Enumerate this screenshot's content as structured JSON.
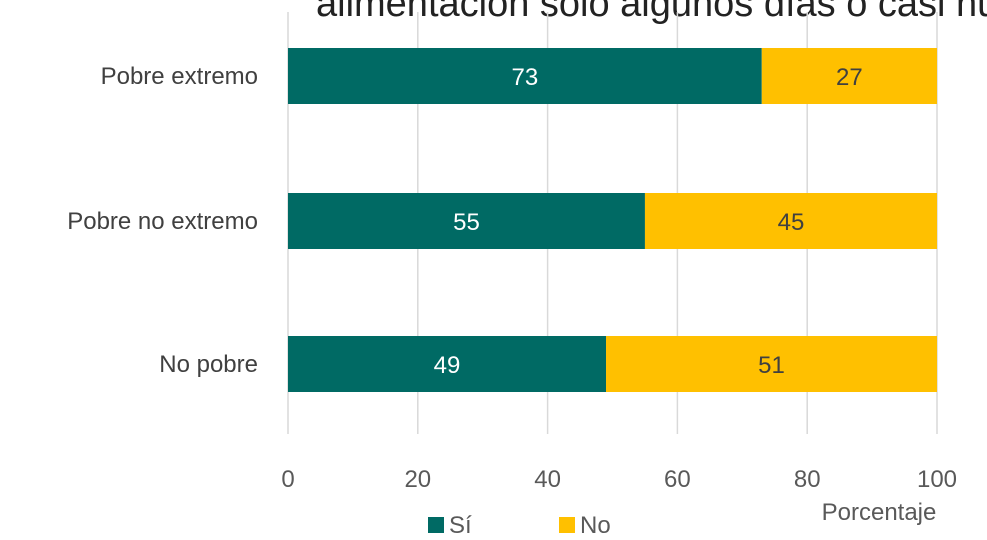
{
  "chart_data": {
    "type": "bar",
    "orientation": "horizontal",
    "stacked": true,
    "title": "alimentación solo algunos días o casi nunca.",
    "categories": [
      "Pobre extremo",
      "Pobre no extremo",
      "No pobre"
    ],
    "series": [
      {
        "name": "Sí",
        "values": [
          73,
          55,
          49
        ],
        "color": "#006A64",
        "label_color": "#ffffff"
      },
      {
        "name": "No",
        "values": [
          27,
          45,
          51
        ],
        "color": "#FFC000",
        "label_color": "#404040"
      }
    ],
    "x_ticks": [
      "0",
      "20",
      "40",
      "60",
      "80",
      "100"
    ],
    "xlim": [
      0,
      100
    ],
    "xlabel": "Porcentaje",
    "ylabel": "",
    "grid": true,
    "legend_position": "bottom",
    "grid_color": "#D9D9D9"
  }
}
